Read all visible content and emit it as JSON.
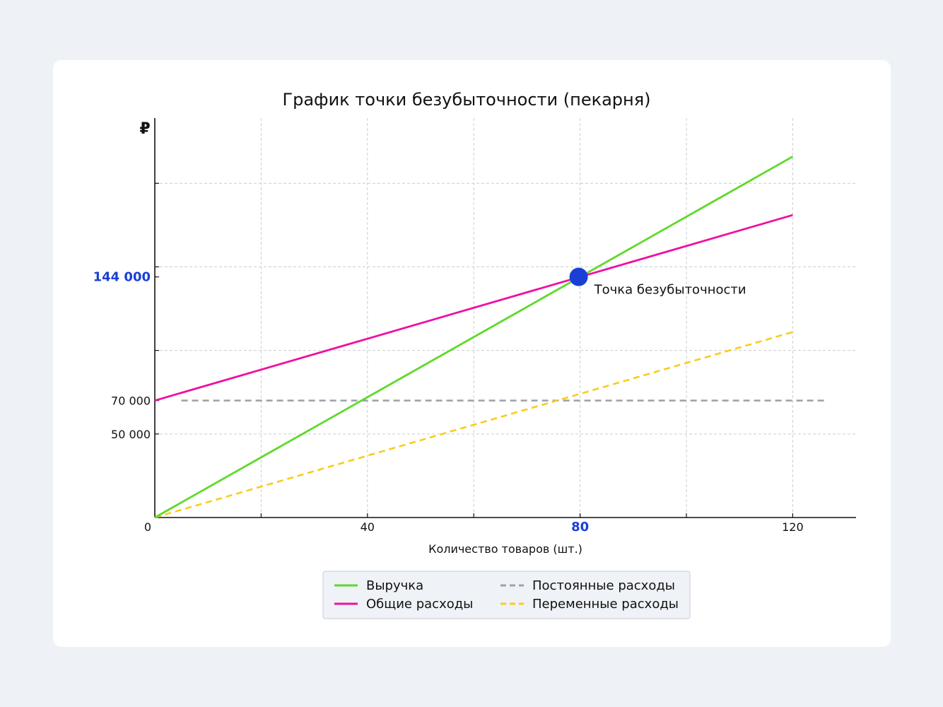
{
  "colors": {
    "revenue": "#5fd92a",
    "total_costs": "#ef0fa2",
    "fixed_costs": "#9ea3aa",
    "variable_costs": "#f7cd1a",
    "breakeven_point": "#1a3fd6",
    "highlight_text": "#1a3fd6"
  },
  "chart_data": {
    "type": "line",
    "title": "График точки безубыточности (пекарня)",
    "xlabel": "Количество товаров (шт.)",
    "ylabel": "₽",
    "xlim": [
      0,
      130
    ],
    "ylim": [
      0,
      315000
    ],
    "x_ticks": [
      {
        "value": 0,
        "label": "0",
        "highlight": false
      },
      {
        "value": 40,
        "label": "40",
        "highlight": false
      },
      {
        "value": 80,
        "label": "80",
        "highlight": true
      },
      {
        "value": 120,
        "label": "120",
        "highlight": false
      }
    ],
    "x_minor_ticks": [
      20,
      60,
      100
    ],
    "x_grid": [
      20,
      40,
      60,
      80,
      100,
      120
    ],
    "y_ticks": [
      {
        "value": 50000,
        "label": "50 000",
        "highlight": false
      },
      {
        "value": 70000,
        "label": "70 000",
        "highlight": false
      },
      {
        "value": 144000,
        "label": "144 000",
        "highlight": true
      }
    ],
    "y_minor_ticks": [
      100000,
      150000,
      200000
    ],
    "y_grid": [
      50000,
      100000,
      150000,
      200000
    ],
    "grid": true,
    "series": [
      {
        "name": "Выручка",
        "key": "revenue",
        "style": "solid",
        "x": [
          0,
          120
        ],
        "y": [
          0,
          216000
        ]
      },
      {
        "name": "Общие расходы",
        "key": "total_costs",
        "style": "solid",
        "x": [
          0,
          120
        ],
        "y": [
          70000,
          181000
        ]
      },
      {
        "name": "Постоянные расходы",
        "key": "fixed_costs",
        "style": "dashed",
        "x": [
          5,
          126
        ],
        "y": [
          70000,
          70000
        ]
      },
      {
        "name": "Переменные расходы",
        "key": "variable_costs",
        "style": "dashed",
        "x": [
          0,
          120
        ],
        "y": [
          0,
          111000
        ]
      }
    ],
    "breakeven": {
      "x": 80,
      "y": 144000,
      "label": "Точка безубыточности"
    },
    "legend_position": "bottom-center"
  }
}
